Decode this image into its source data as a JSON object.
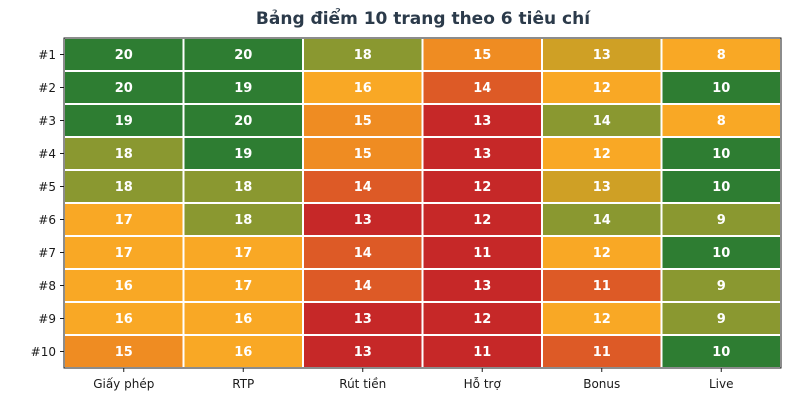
{
  "chart_data": {
    "type": "heatmap",
    "title": "Bảng điểm 10 trang theo 6 tiêu chí",
    "rows": [
      "#1",
      "#2",
      "#3",
      "#4",
      "#5",
      "#6",
      "#7",
      "#8",
      "#9",
      "#10"
    ],
    "columns": [
      "Giấy phép",
      "RTP",
      "Rút tiền",
      "Hỗ trợ",
      "Bonus",
      "Live"
    ],
    "values": [
      [
        20,
        20,
        18,
        15,
        13,
        8
      ],
      [
        20,
        19,
        16,
        14,
        12,
        10
      ],
      [
        19,
        20,
        15,
        13,
        14,
        8
      ],
      [
        18,
        19,
        15,
        13,
        12,
        10
      ],
      [
        18,
        18,
        14,
        12,
        13,
        10
      ],
      [
        17,
        18,
        13,
        12,
        14,
        9
      ],
      [
        17,
        17,
        14,
        11,
        12,
        10
      ],
      [
        16,
        17,
        14,
        13,
        11,
        9
      ],
      [
        16,
        16,
        13,
        12,
        12,
        9
      ],
      [
        15,
        16,
        13,
        11,
        11,
        10
      ]
    ],
    "column_max": [
      20,
      20,
      20,
      20,
      15,
      10
    ],
    "colors": {
      "red": "#c62828",
      "orange_red": "#dd5a26",
      "orange": "#ef8c22",
      "amber": "#f9a825",
      "gold": "#cfa025",
      "olive": "#8a9830",
      "green": "#2e7d32",
      "cell_text": "#ffffff",
      "grid": "#ffffff",
      "frame": "#1a1a1a"
    }
  }
}
